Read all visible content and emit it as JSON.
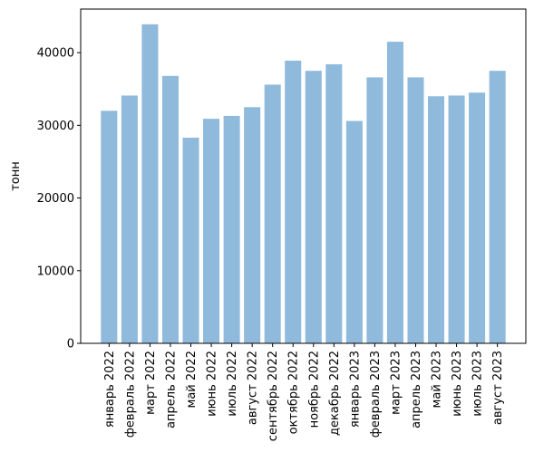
{
  "chart_data": {
    "type": "bar",
    "title": "",
    "xlabel": "",
    "ylabel": "тонн",
    "ylim": [
      0,
      46000
    ],
    "yticks": [
      0,
      10000,
      20000,
      30000,
      40000
    ],
    "grid": false,
    "bar_color": "#8fbadb",
    "categories": [
      "январь 2022",
      "февраль 2022",
      "март 2022",
      "апрель 2022",
      "май 2022",
      "июнь 2022",
      "июль 2022",
      "август 2022",
      "сентябрь 2022",
      "октябрь 2022",
      "ноябрь 2022",
      "декабрь 2022",
      "январь 2023",
      "февраль 2023",
      "март 2023",
      "апрель 2023",
      "май 2023",
      "июнь 2023",
      "июль 2023",
      "август 2023"
    ],
    "values": [
      32000,
      34100,
      43900,
      36800,
      28300,
      30900,
      31300,
      32500,
      35600,
      38900,
      37500,
      38400,
      30600,
      36600,
      41500,
      36600,
      34000,
      34100,
      34500,
      37500
    ]
  }
}
